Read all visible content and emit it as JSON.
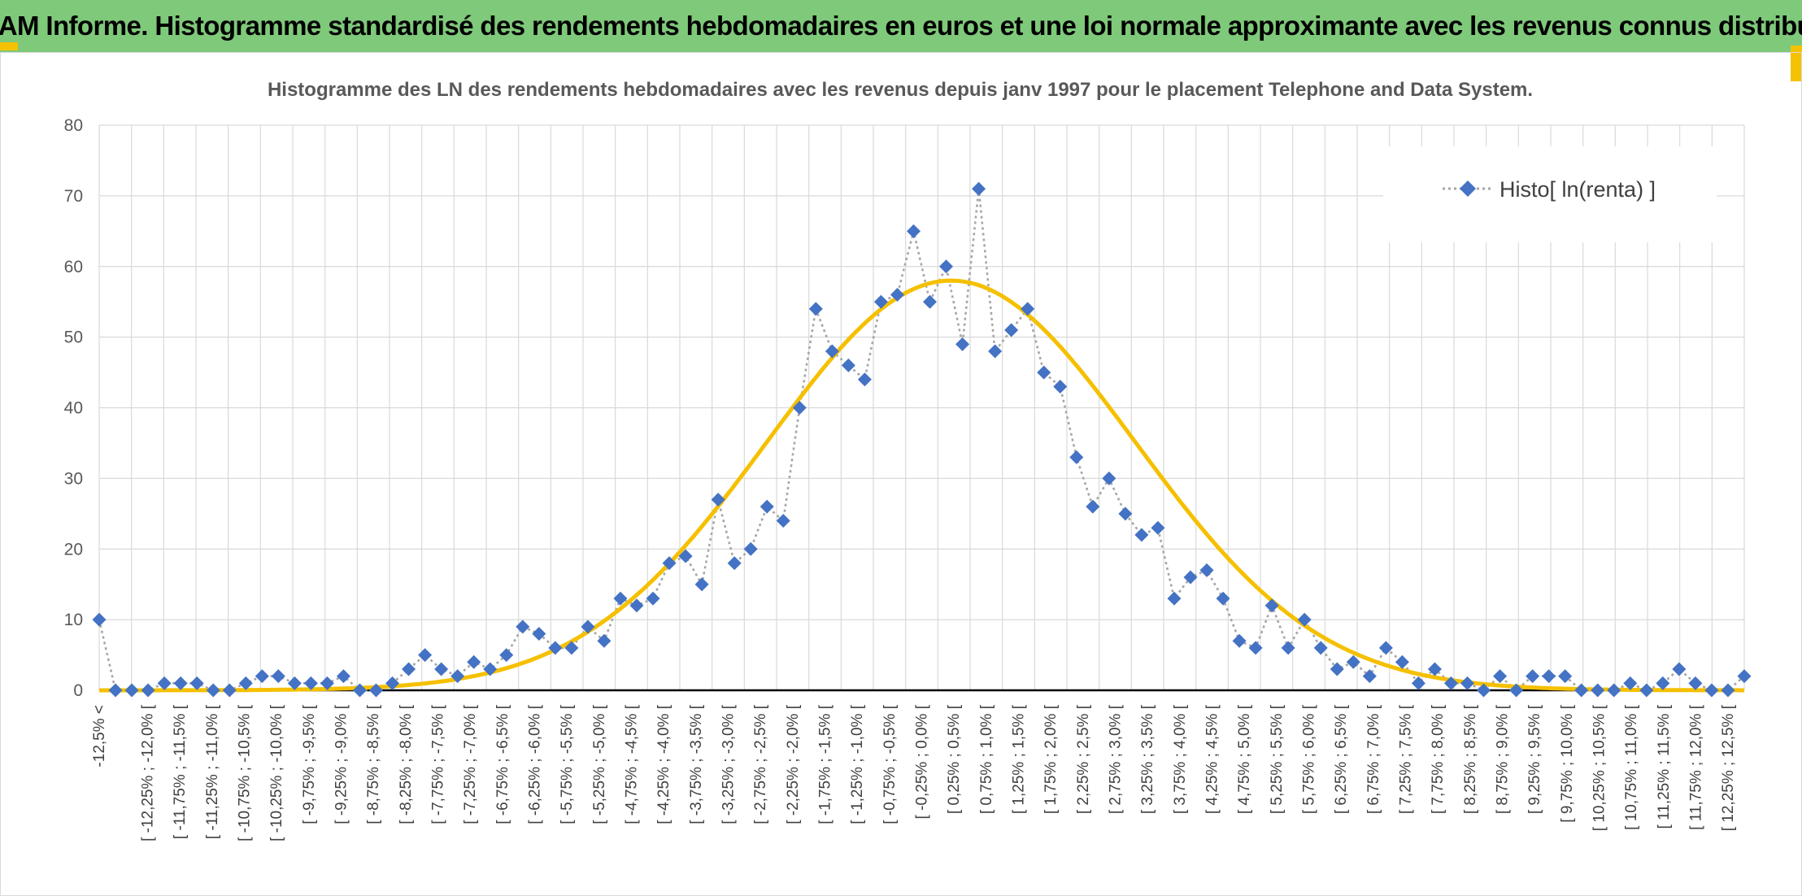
{
  "banner": {
    "title": "ADAM Informe. Histogramme standardisé des rendements hebdomadaires en euros et une loi normale approximante avec les revenus connus distribués"
  },
  "colors": {
    "banner_bg": "#7fc97a",
    "accent": "#f4c200",
    "marker": "#4472c4",
    "dotted_line": "#a6a6a6",
    "normal_curve": "#f5c000",
    "grid": "#d9d9d9"
  },
  "chart_data": {
    "type": "line",
    "title": "Histogramme des LN des rendements hebdomadaires avec les revenus depuis janv 1997 pour le placement Telephone and Data System.",
    "xlabel": "",
    "ylabel": "",
    "ylim": [
      0,
      80
    ],
    "yticks": [
      0,
      10,
      20,
      30,
      40,
      50,
      60,
      70,
      80
    ],
    "grid": true,
    "legend_position": "top-right",
    "x_labels": [
      "-12,5% <",
      "[ -12,25% ; -12,0% [",
      "[ -11,75% ; -11,5% [",
      "[ -11,25% ; -11,0% [",
      "[ -10,75% ; -10,5% [",
      "[ -10,25% ; -10,0% [",
      "[ -9,75% ; -9,5% [",
      "[ -9,25% ; -9,0% [",
      "[ -8,75% ; -8,5% [",
      "[ -8,25% ; -8,0% [",
      "[ -7,75% ; -7,5% [",
      "[ -7,25% ; -7,0% [",
      "[ -6,75% ; -6,5% [",
      "[ -6,25% ; -6,0% [",
      "[ -5,75% ; -5,5% [",
      "[ -5,25% ; -5,0% [",
      "[ -4,75% ; -4,5% [",
      "[ -4,25% ; -4,0% [",
      "[ -3,75% ; -3,5% [",
      "[ -3,25% ; -3,0% [",
      "[ -2,75% ; -2,5% [",
      "[ -2,25% ; -2,0% [",
      "[ -1,75% ; -1,5% [",
      "[ -1,25% ; -1,0% [",
      "[ -0,75% ; -0,5% [",
      "[ -0,25% ; 0,0% [",
      "[ 0,25% ; 0,5% [",
      "[ 0,75% ; 1,0% [",
      "[ 1,25% ; 1,5% [",
      "[ 1,75% ; 2,0% [",
      "[ 2,25% ; 2,5% [",
      "[ 2,75% ; 3,0% [",
      "[ 3,25% ; 3,5% [",
      "[ 3,75% ; 4,0% [",
      "[ 4,25% ; 4,5% [",
      "[ 4,75% ; 5,0% [",
      "[ 5,25% ; 5,5% [",
      "[ 5,75% ; 6,0% [",
      "[ 6,25% ; 6,5% [",
      "[ 6,75% ; 7,0% [",
      "[ 7,25% ; 7,5% [",
      "[ 7,75% ; 8,0% [",
      "[ 8,25% ; 8,5% [",
      "[ 8,75% ; 9,0% [",
      "[ 9,25% ; 9,5% [",
      "[ 9,75% ; 10,0% [",
      "[ 10,25% ; 10,5% [",
      "[ 10,75% ; 11,0% [",
      "[ 11,25% ; 11,5% [",
      "[ 11,75% ; 12,0% [",
      "[ 12,25% ; 12,5% ["
    ],
    "series": [
      {
        "name": "Histo[ ln(renta) ]",
        "style": "dotted-line-diamond-markers",
        "values": [
          10,
          0,
          0,
          0,
          1,
          1,
          1,
          0,
          0,
          1,
          2,
          2,
          1,
          1,
          1,
          2,
          0,
          0,
          1,
          3,
          5,
          3,
          2,
          4,
          3,
          5,
          9,
          8,
          6,
          6,
          9,
          7,
          13,
          12,
          13,
          18,
          19,
          15,
          27,
          18,
          20,
          26,
          24,
          40,
          54,
          48,
          46,
          44,
          55,
          56,
          65,
          55,
          60,
          49,
          71,
          48,
          51,
          54,
          45,
          43,
          33,
          26,
          30,
          25,
          22,
          23,
          13,
          16,
          17,
          13,
          7,
          6,
          12,
          6,
          10,
          6,
          3,
          4,
          2,
          6,
          4,
          1,
          3,
          1,
          1,
          0,
          2,
          0,
          2,
          2,
          2,
          0,
          0,
          0,
          1,
          0,
          1,
          3,
          1,
          0,
          0,
          2
        ]
      },
      {
        "style": "normal-curve",
        "mean_position": 52.3,
        "peak": 58,
        "sigma": 11.3
      }
    ]
  }
}
